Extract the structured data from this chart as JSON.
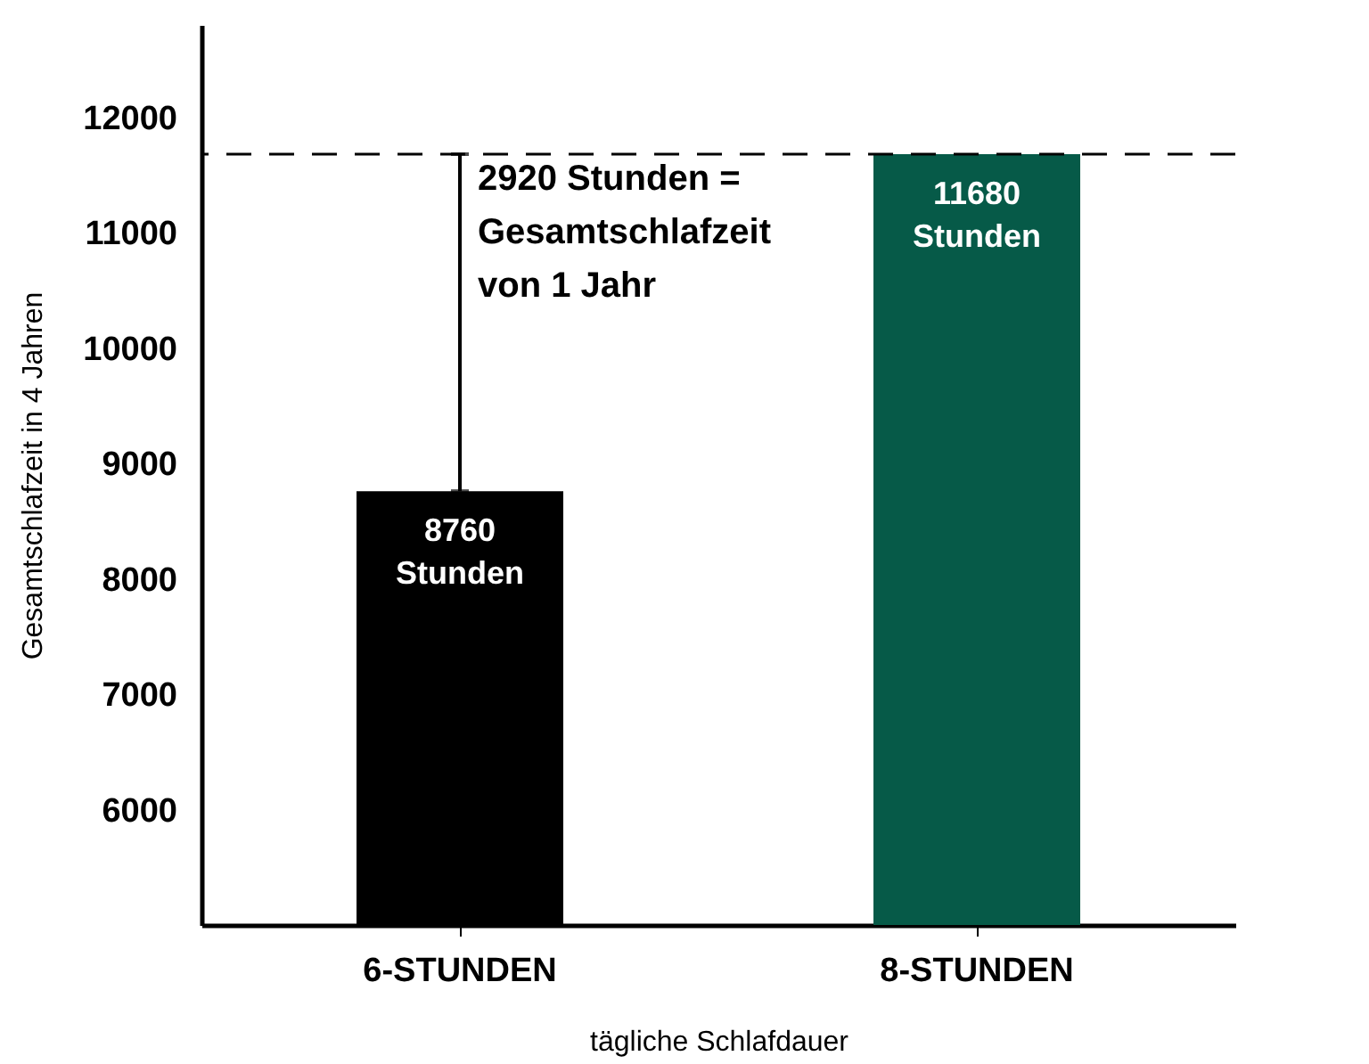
{
  "chart_data": {
    "type": "bar",
    "xlabel": "tägliche Schlafdauer",
    "ylabel": "Gesamtschlafzeit in 4 Jahren",
    "categories": [
      "6-STUNDEN",
      "8-STUNDEN"
    ],
    "values": [
      8760,
      11680
    ],
    "colors": [
      "#000000",
      "#065a48"
    ],
    "value_labels": [
      "8760 Stunden",
      "11680 Stunden"
    ],
    "errors": [
      [
        8760,
        11680
      ],
      null
    ],
    "ref_lines": [
      {
        "axis": "y",
        "value": 11680,
        "line_style": "dashed",
        "color": "#000000"
      }
    ],
    "annotations": [
      {
        "text": "2920 Stunden =\nGesamtschlafzeit\nvon 1 Jahr",
        "x": "6-STUNDEN",
        "y": 11680
      }
    ],
    "ylim": [
      5000,
      12800
    ],
    "yticks": [
      6000,
      7000,
      8000,
      9000,
      10000,
      11000,
      12000
    ],
    "grid": false
  }
}
